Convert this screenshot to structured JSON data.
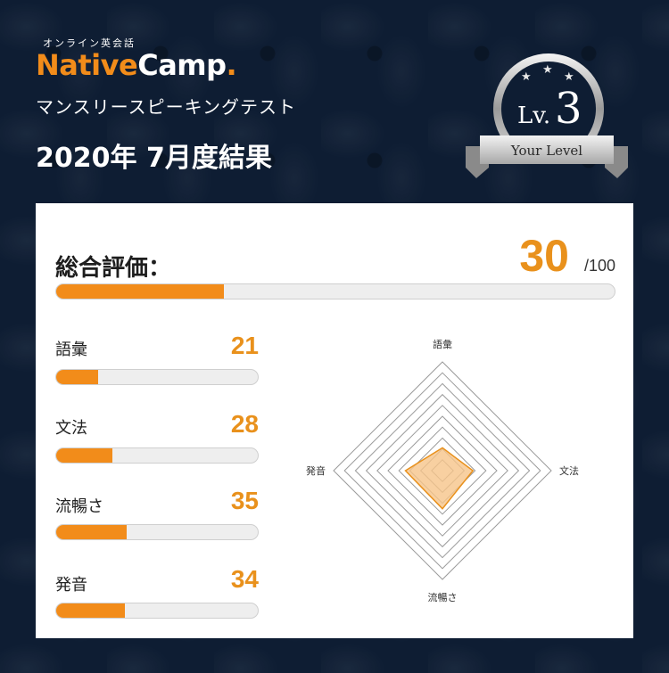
{
  "brand": {
    "tagline": "オンライン英会話",
    "name_part1": "Native",
    "name_part2": "Camp",
    "name_dot": ".",
    "subtitle": "マンスリースピーキングテスト",
    "result_title": "2020年 7月度結果"
  },
  "badge": {
    "lv_prefix": "Lv.",
    "level": "3",
    "ribbon_text": "Your Level"
  },
  "total": {
    "label": "総合評価：",
    "score": "30",
    "max": "/100",
    "fraction": 0.3
  },
  "metrics": [
    {
      "label": "語彙",
      "score": "21",
      "fraction": 0.21
    },
    {
      "label": "文法",
      "score": "28",
      "fraction": 0.28
    },
    {
      "label": "流暢さ",
      "score": "35",
      "fraction": 0.35
    },
    {
      "label": "発音",
      "score": "34",
      "fraction": 0.34
    }
  ],
  "radar": {
    "axis_top": "語彙",
    "axis_right": "文法",
    "axis_bottom": "流暢さ",
    "axis_left": "発音",
    "max": 100,
    "values": [
      21,
      28,
      35,
      34
    ],
    "fill_color": "#f6c48a",
    "stroke_color": "#e9911c"
  },
  "colors": {
    "accent": "#f28c1a",
    "score": "#e9911c",
    "background": "#0e1d33"
  }
}
